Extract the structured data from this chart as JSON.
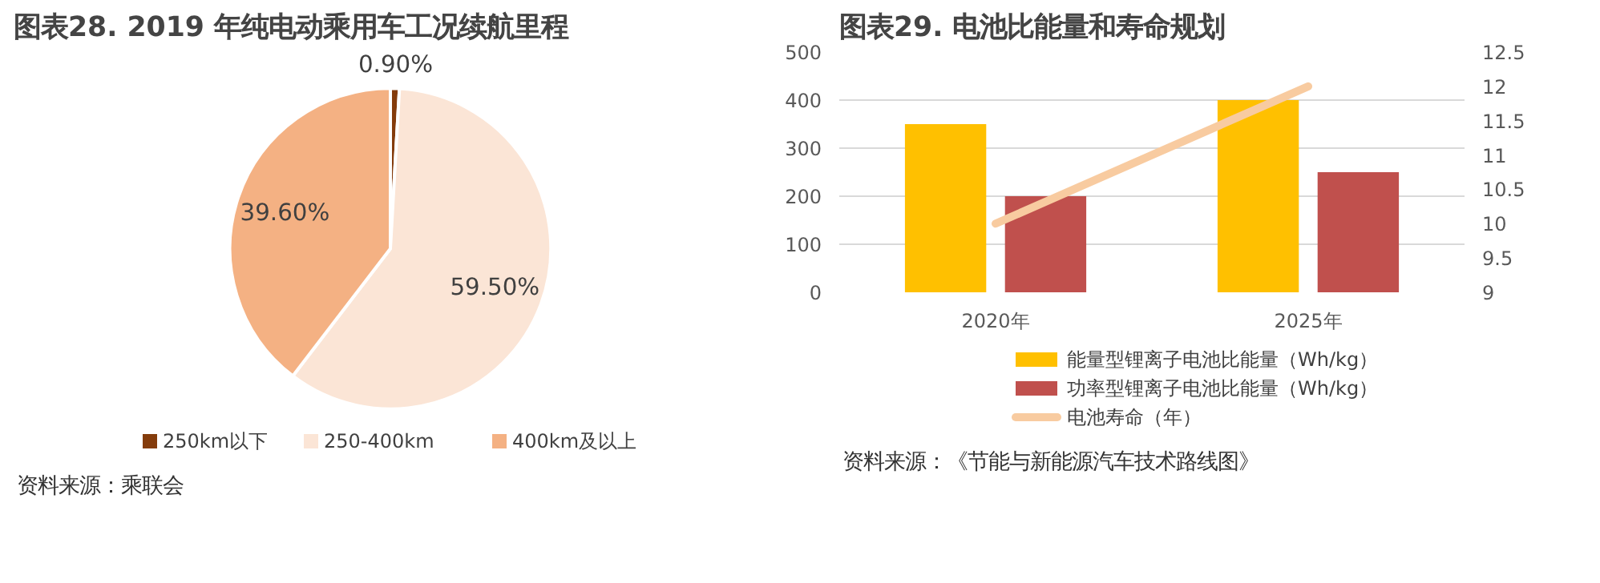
{
  "chart_data": [
    {
      "type": "pie",
      "title": "图表28. 2019 年纯电动乘用车工况续航里程",
      "categories": [
        "250km以下",
        "250-400km",
        "400km及以上"
      ],
      "values": [
        0.9,
        59.5,
        39.6
      ],
      "colors": [
        "#843c0c",
        "#fbe5d6",
        "#f4b183"
      ],
      "value_labels": [
        "0.90%",
        "59.50%",
        "39.60%"
      ],
      "legend": "bottom",
      "annotations": [
        "资料来源：乘联会"
      ]
    },
    {
      "type": "bar",
      "title": "图表29. 电池比能量和寿命规划",
      "categories": [
        "2020年",
        "2025年"
      ],
      "series": [
        {
          "name": "能量型锂离子电池比能量（Wh/kg）",
          "color": "#ffc000",
          "values": [
            350,
            400
          ]
        },
        {
          "name": "功率型锂离子电池比能量（Wh/kg）",
          "color": "#c0504d",
          "values": [
            200,
            250
          ]
        },
        {
          "name": "电池寿命（年）",
          "color": "#f8cba0",
          "type": "line",
          "axis": "y2",
          "values": [
            10,
            12
          ]
        }
      ],
      "ylim": [
        0,
        500
      ],
      "yticks": [
        0,
        100,
        200,
        300,
        400,
        500
      ],
      "y2lim": [
        9,
        12.5
      ],
      "y2ticks": [
        9,
        {
          "value": 9.5,
          "label": "9.5"
        },
        10,
        {
          "value": 10.5,
          "label": "10.5"
        },
        11,
        {
          "value": 11.5,
          "label": "11.5"
        },
        12,
        {
          "value": 12.5,
          "label": "12.5"
        }
      ],
      "grid": "y",
      "legend": "bottom",
      "annotations": [
        "资料来源：《节能与新能源汽车技术路线图》"
      ]
    }
  ]
}
